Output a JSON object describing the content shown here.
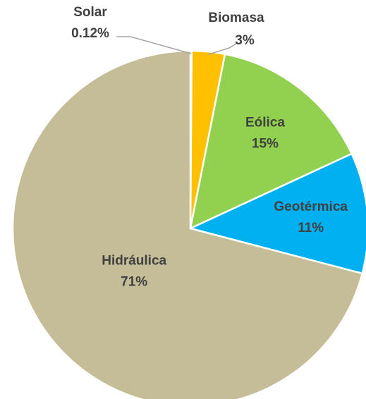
{
  "chart_data": {
    "type": "pie",
    "categories": [
      "Solar",
      "Biomasa",
      "Eólica",
      "Geotérmica",
      "Hidráulica"
    ],
    "values": [
      0.12,
      3,
      15,
      11,
      71
    ],
    "value_labels": [
      "0.12%",
      "3%",
      "15%",
      "11%",
      "71%"
    ],
    "colors": [
      "#a5a5a5",
      "#ffc000",
      "#92d050",
      "#00b0f0",
      "#c4bd97"
    ]
  }
}
